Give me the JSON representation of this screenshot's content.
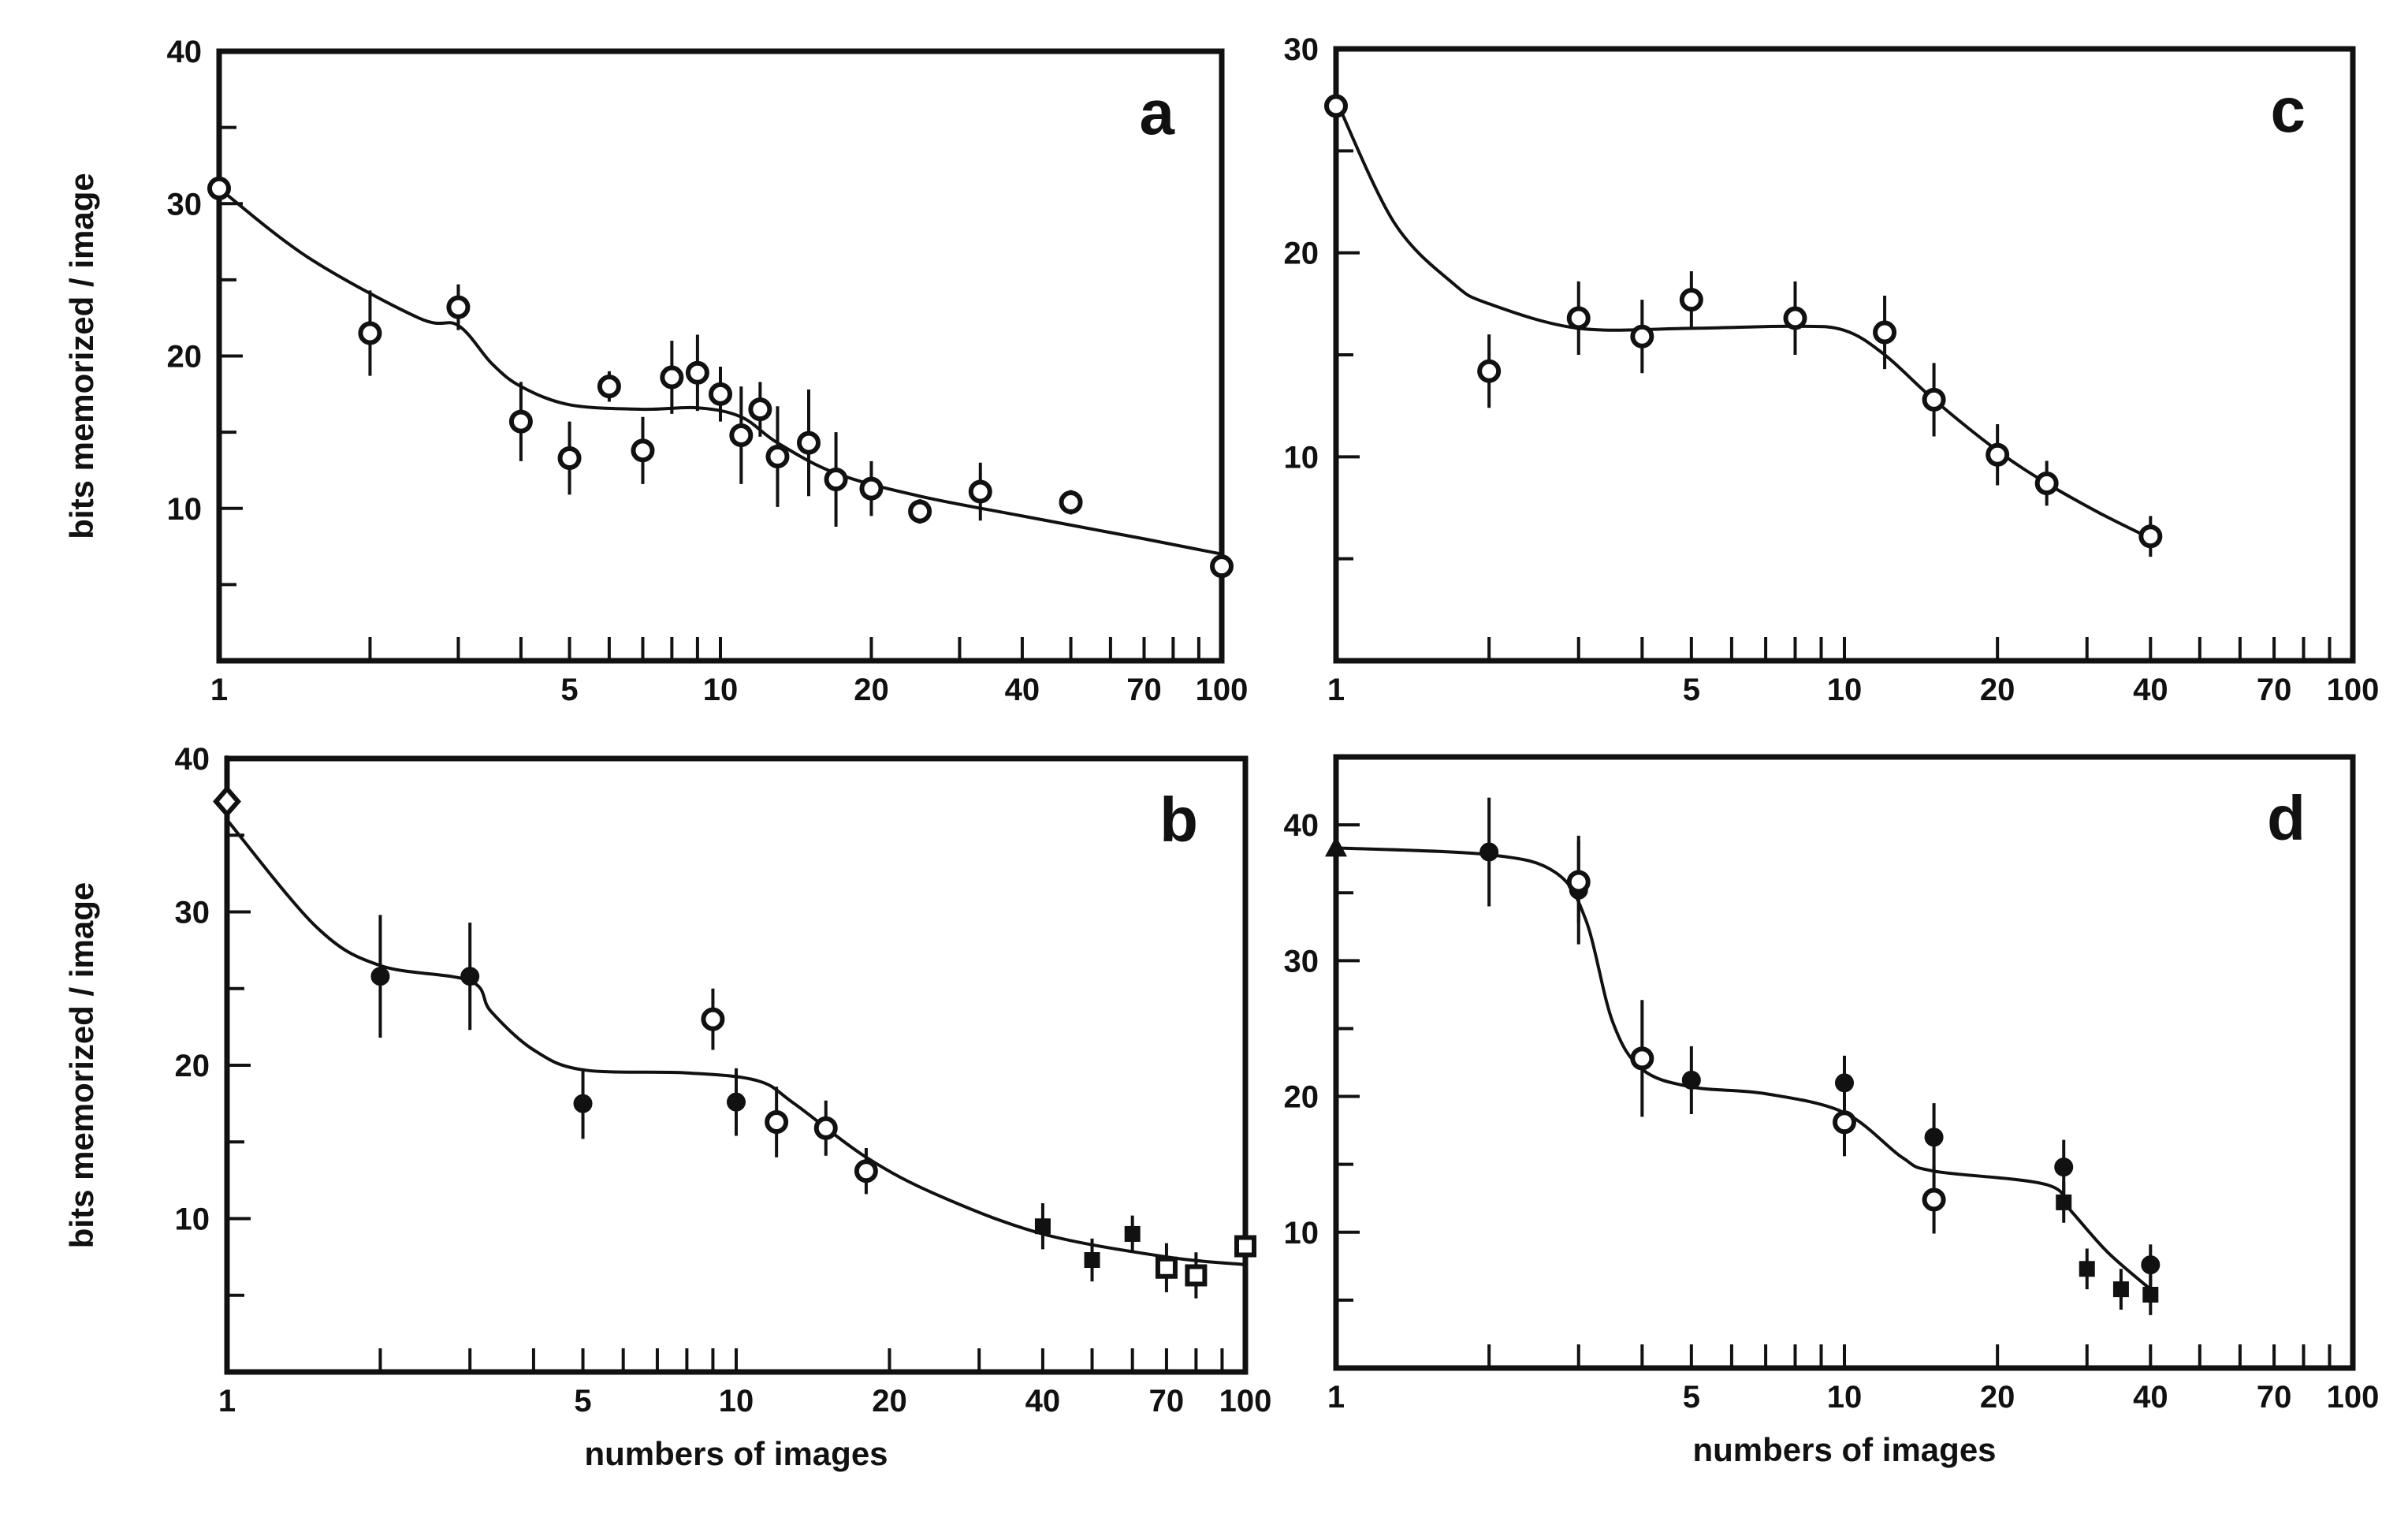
{
  "chart_data": [
    {
      "type": "scatter",
      "panel_label": "a",
      "xlabel": "",
      "ylabel": "bits memorized / image",
      "xscale": "log",
      "xlim": [
        1,
        100
      ],
      "ylim": [
        0,
        40
      ],
      "x_tick_labels": [
        "1",
        "5",
        "10",
        "20",
        "40",
        "70",
        "100"
      ],
      "y_tick_labels": [
        "10",
        "20",
        "30",
        "40"
      ],
      "series": [
        {
          "marker": "open-circle",
          "points": [
            {
              "x": 1,
              "y": 31,
              "err": 2
            },
            {
              "x": 2,
              "y": 21.5,
              "err": 2.8
            },
            {
              "x": 3,
              "y": 23.2,
              "err": 1.5
            },
            {
              "x": 4,
              "y": 15.7,
              "err": 2.6
            },
            {
              "x": 5,
              "y": 13.3,
              "err": 2.4
            },
            {
              "x": 6,
              "y": 18,
              "err": 1
            },
            {
              "x": 7,
              "y": 13.8,
              "err": 2.2
            },
            {
              "x": 8,
              "y": 18.6,
              "err": 2.4
            },
            {
              "x": 9,
              "y": 18.9,
              "err": 2.5
            },
            {
              "x": 10,
              "y": 17.5,
              "err": 1.8
            },
            {
              "x": 11,
              "y": 14.8,
              "err": 3.2
            },
            {
              "x": 12,
              "y": 16.5,
              "err": 1.8
            },
            {
              "x": 13,
              "y": 13.4,
              "err": 3.3
            },
            {
              "x": 15,
              "y": 14.3,
              "err": 3.5
            },
            {
              "x": 17,
              "y": 11.9,
              "err": 3.1
            },
            {
              "x": 20,
              "y": 11.3,
              "err": 1.8
            },
            {
              "x": 25,
              "y": 9.8,
              "err": 0.8
            },
            {
              "x": 33,
              "y": 11.1,
              "err": 1.9
            },
            {
              "x": 50,
              "y": 10.4,
              "err": 0.8
            },
            {
              "x": 100,
              "y": 6.2,
              "err": 0.5
            }
          ]
        }
      ],
      "curve": [
        [
          1,
          31
        ],
        [
          1.5,
          26.5
        ],
        [
          2.5,
          22.5
        ],
        [
          3,
          22
        ],
        [
          3.5,
          19.5
        ],
        [
          4,
          18
        ],
        [
          5,
          16.8
        ],
        [
          7,
          16.5
        ],
        [
          9,
          16.6
        ],
        [
          11,
          16
        ],
        [
          13,
          14.3
        ],
        [
          17,
          12.3
        ],
        [
          25,
          10.8
        ],
        [
          40,
          9.5
        ],
        [
          70,
          8
        ],
        [
          100,
          7
        ]
      ]
    },
    {
      "type": "scatter",
      "panel_label": "b",
      "xlabel": "numbers of images",
      "ylabel": "bits memorized / image",
      "xscale": "log",
      "xlim": [
        1,
        100
      ],
      "ylim": [
        0,
        40
      ],
      "x_tick_labels": [
        "1",
        "5",
        "10",
        "20",
        "40",
        "70",
        "100"
      ],
      "y_tick_labels": [
        "10",
        "20",
        "30",
        "40"
      ],
      "series": [
        {
          "marker": "open-diamond",
          "points": [
            {
              "x": 1,
              "y": 37.2,
              "err": 3
            }
          ]
        },
        {
          "marker": "filled-circle",
          "points": [
            {
              "x": 2,
              "y": 25.8,
              "err": 4
            },
            {
              "x": 3,
              "y": 25.8,
              "err": 3.5
            },
            {
              "x": 5,
              "y": 17.5,
              "err": 2.3
            },
            {
              "x": 10,
              "y": 17.6,
              "err": 2.2
            }
          ]
        },
        {
          "marker": "open-circle",
          "points": [
            {
              "x": 9,
              "y": 23,
              "err": 2
            },
            {
              "x": 12,
              "y": 16.3,
              "err": 2.3
            },
            {
              "x": 15,
              "y": 15.9,
              "err": 1.8
            },
            {
              "x": 18,
              "y": 13.1,
              "err": 1.5
            }
          ]
        },
        {
          "marker": "filled-square",
          "points": [
            {
              "x": 40,
              "y": 9.5,
              "err": 1.5
            },
            {
              "x": 50,
              "y": 7.3,
              "err": 1.4
            },
            {
              "x": 60,
              "y": 9,
              "err": 1.2
            }
          ]
        },
        {
          "marker": "open-square",
          "points": [
            {
              "x": 70,
              "y": 6.8,
              "err": 1.6
            },
            {
              "x": 80,
              "y": 6.3,
              "err": 1.5
            },
            {
              "x": 100,
              "y": 8.2,
              "err": 1.2
            }
          ]
        }
      ],
      "curve": [
        [
          1,
          36
        ],
        [
          1.5,
          29
        ],
        [
          2,
          26.5
        ],
        [
          3,
          25.5
        ],
        [
          3.3,
          23.5
        ],
        [
          4,
          21
        ],
        [
          5,
          19.7
        ],
        [
          8,
          19.5
        ],
        [
          11,
          19
        ],
        [
          13,
          17.5
        ],
        [
          18,
          14
        ],
        [
          25,
          11.5
        ],
        [
          40,
          9
        ],
        [
          70,
          7.5
        ],
        [
          100,
          7
        ]
      ]
    },
    {
      "type": "scatter",
      "panel_label": "c",
      "xlabel": "",
      "ylabel": "",
      "xscale": "log",
      "xlim": [
        1,
        100
      ],
      "ylim": [
        0,
        30
      ],
      "x_tick_labels": [
        "1",
        "5",
        "10",
        "20",
        "40",
        "70",
        "100"
      ],
      "y_tick_labels": [
        "10",
        "20",
        "30"
      ],
      "series": [
        {
          "marker": "open-circle",
          "points": [
            {
              "x": 1,
              "y": 27.2,
              "err": 2
            },
            {
              "x": 2,
              "y": 14.2,
              "err": 1.8
            },
            {
              "x": 3,
              "y": 16.8,
              "err": 1.8
            },
            {
              "x": 4,
              "y": 15.9,
              "err": 1.8
            },
            {
              "x": 5,
              "y": 17.7,
              "err": 1.4
            },
            {
              "x": 8,
              "y": 16.8,
              "err": 1.8
            },
            {
              "x": 12,
              "y": 16.1,
              "err": 1.8
            },
            {
              "x": 15,
              "y": 12.8,
              "err": 1.8
            },
            {
              "x": 20,
              "y": 10.1,
              "err": 1.5
            },
            {
              "x": 25,
              "y": 8.7,
              "err": 1.1
            },
            {
              "x": 40,
              "y": 6.1,
              "err": 1
            }
          ]
        }
      ],
      "curve": [
        [
          1,
          27.5
        ],
        [
          1.3,
          21.5
        ],
        [
          1.7,
          18.5
        ],
        [
          2,
          17.5
        ],
        [
          3,
          16.3
        ],
        [
          5,
          16.3
        ],
        [
          8,
          16.4
        ],
        [
          10,
          16.2
        ],
        [
          12,
          15
        ],
        [
          15,
          12.8
        ],
        [
          20,
          10.3
        ],
        [
          25,
          8.7
        ],
        [
          32,
          7.2
        ],
        [
          40,
          6
        ]
      ]
    },
    {
      "type": "scatter",
      "panel_label": "d",
      "xlabel": "numbers of images",
      "ylabel": "",
      "xscale": "log",
      "xlim": [
        1,
        100
      ],
      "ylim": [
        0,
        45
      ],
      "x_tick_labels": [
        "1",
        "5",
        "10",
        "20",
        "40",
        "70",
        "100"
      ],
      "y_tick_labels": [
        "10",
        "20",
        "30",
        "40"
      ],
      "series": [
        {
          "marker": "filled-triangle",
          "points": [
            {
              "x": 1,
              "y": 38.3,
              "err": 3
            }
          ]
        },
        {
          "marker": "filled-circle",
          "points": [
            {
              "x": 2,
              "y": 38,
              "err": 4
            },
            {
              "x": 3,
              "y": 35.2,
              "err": 4
            },
            {
              "x": 5,
              "y": 21.2,
              "err": 2.5
            },
            {
              "x": 10,
              "y": 21,
              "err": 2
            },
            {
              "x": 15,
              "y": 17,
              "err": 2.5
            },
            {
              "x": 27,
              "y": 14.8,
              "err": 2
            },
            {
              "x": 40,
              "y": 7.6,
              "err": 1.5
            }
          ]
        },
        {
          "marker": "open-circle",
          "points": [
            {
              "x": 3,
              "y": 35.8,
              "err": 3
            },
            {
              "x": 4,
              "y": 22.8,
              "err": 4.3
            },
            {
              "x": 10,
              "y": 18.1,
              "err": 2.5
            },
            {
              "x": 15,
              "y": 12.4,
              "err": 2.5
            }
          ]
        },
        {
          "marker": "filled-square",
          "points": [
            {
              "x": 27,
              "y": 12.2,
              "err": 1.5
            },
            {
              "x": 30,
              "y": 7.3,
              "err": 1.5
            },
            {
              "x": 35,
              "y": 5.8,
              "err": 1.5
            },
            {
              "x": 40,
              "y": 5.4,
              "err": 1.5
            }
          ]
        }
      ],
      "curve": [
        [
          1,
          38.3
        ],
        [
          2,
          37.8
        ],
        [
          2.7,
          36.5
        ],
        [
          3.1,
          33
        ],
        [
          3.5,
          25.5
        ],
        [
          4,
          22
        ],
        [
          5,
          20.7
        ],
        [
          7,
          20.2
        ],
        [
          10,
          18.8
        ],
        [
          13,
          15.5
        ],
        [
          15,
          14.5
        ],
        [
          25,
          13.5
        ],
        [
          28,
          11.5
        ],
        [
          33,
          8.5
        ],
        [
          40,
          5.8
        ]
      ]
    }
  ]
}
